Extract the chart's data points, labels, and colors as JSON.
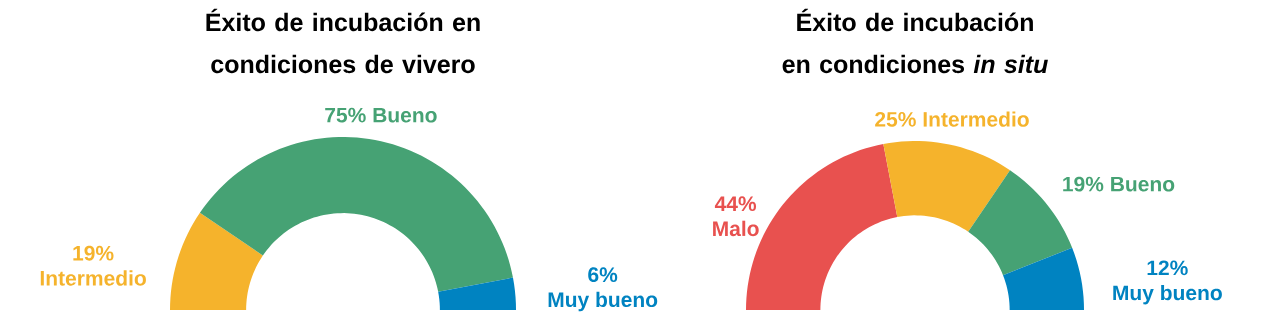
{
  "chart_data": [
    {
      "type": "donut",
      "title": "Éxito de incubación en condiciones de vivero",
      "categories": [
        "Intermedio",
        "Bueno",
        "Muy bueno"
      ],
      "values": [
        19,
        75,
        6
      ],
      "value_labels": [
        "19%",
        "75%",
        "6%"
      ],
      "colors": [
        "#f5b32c",
        "#46a274",
        "#0083c1"
      ]
    },
    {
      "type": "donut",
      "title": "Éxito de incubación en condiciones *in situ*",
      "categories": [
        "Malo",
        "Intermedio",
        "Bueno",
        "Muy bueno"
      ],
      "values": [
        44,
        25,
        19,
        12
      ],
      "value_labels": [
        "44%",
        "25%",
        "19%",
        "12%"
      ],
      "colors": [
        "#e8514f",
        "#f5b32c",
        "#46a274",
        "#0083c1"
      ]
    }
  ]
}
